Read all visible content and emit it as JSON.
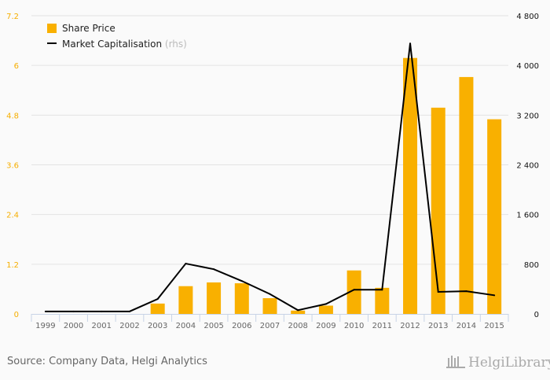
{
  "chart_data": {
    "type": "bar",
    "categories": [
      "1999",
      "2000",
      "2001",
      "2002",
      "2003",
      "2004",
      "2005",
      "2006",
      "2007",
      "2008",
      "2009",
      "2010",
      "2011",
      "2012",
      "2013",
      "2014",
      "2015"
    ],
    "series": [
      {
        "name": "Share Price",
        "type": "bar",
        "axis": "left",
        "color": "#f9b000",
        "values": [
          0,
          0,
          0,
          0,
          0.25,
          0.67,
          0.76,
          0.74,
          0.38,
          0.08,
          0.2,
          1.05,
          0.63,
          6.18,
          4.98,
          5.72,
          4.7
        ]
      },
      {
        "name": "Market Capitalisation",
        "suffix": "(rhs)",
        "type": "line",
        "axis": "right",
        "color": "#000000",
        "values": [
          40,
          40,
          40,
          40,
          240,
          810,
          720,
          530,
          320,
          60,
          160,
          390,
          390,
          4355,
          355,
          365,
          300
        ]
      }
    ],
    "left_axis": {
      "ylim": [
        0,
        7.2
      ],
      "ticks": [
        "0",
        "1.2",
        "2.4",
        "3.6",
        "4.8",
        "6",
        "7.2"
      ],
      "tick_values": [
        0,
        1.2,
        2.4,
        3.6,
        4.8,
        6,
        7.2
      ]
    },
    "right_axis": {
      "ylim": [
        0,
        4800
      ],
      "ticks": [
        "0",
        "800",
        "1 600",
        "2 400",
        "3 200",
        "4 000",
        "4 800"
      ]
    },
    "grid": true,
    "legend_position": "top-left",
    "source": "Source: Company Data, Helgi Analytics",
    "logo": "HelgiLibrary."
  }
}
